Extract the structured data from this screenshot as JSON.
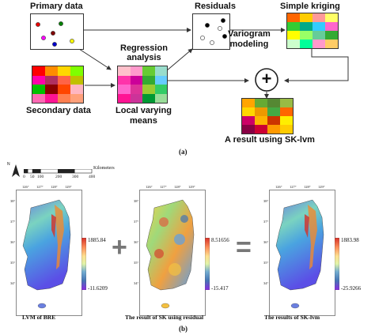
{
  "panel_a": {
    "primary_label": "Primary data",
    "secondary_label": "Secondary data",
    "regression_label_1": "Regression",
    "regression_label_2": "analysis",
    "lvm_label_1": "Local varying",
    "lvm_label_2": "means",
    "residuals_label": "Residuals",
    "sk_label": "Simple kriging",
    "variogram_label_1": "Variogram",
    "variogram_label_2": "modeling",
    "plus_symbol": "+",
    "result_label": "A result using SK-lvm",
    "caption": "(a)",
    "secondary_grid_colors": [
      "#ff0000",
      "#ff8c00",
      "#ffd700",
      "#7fff00",
      "#ff00aa",
      "#b03060",
      "#ff6347",
      "#c0c000",
      "#00c000",
      "#8b0000",
      "#ff4500",
      "#ffb6c1",
      "#ff69b4",
      "#ff1493",
      "#ff7f50",
      "#ffa07a"
    ],
    "lvm_grid_colors": [
      "#ffc0cb",
      "#ff99cc",
      "#66cc33",
      "#99ddcc",
      "#ff33aa",
      "#cc0099",
      "#33aa33",
      "#66ccff",
      "#ff66cc",
      "#dd3399",
      "#99cc33",
      "#33cc66",
      "#ff1493",
      "#cc3399",
      "#009933",
      "#99dd99"
    ],
    "sk_grid_colors": [
      "#ff6600",
      "#ffcc00",
      "#ff9999",
      "#ffff66",
      "#33cc33",
      "#00aa88",
      "#33ccff",
      "#ff66cc",
      "#ffff00",
      "#99ff66",
      "#66cc99",
      "#33aa33",
      "#ccffcc",
      "#00ff99",
      "#ff99cc",
      "#ffcc66"
    ],
    "result_grid_colors": [
      "#ffa500",
      "#66aa33",
      "#558833",
      "#99bb44",
      "#ffd700",
      "#ee9900",
      "#44aa44",
      "#ff6600",
      "#cc0066",
      "#ffb300",
      "#cc3300",
      "#ffee00",
      "#880044",
      "#cc0033",
      "#ff9900",
      "#ffcc00"
    ],
    "primary_points": [
      "#e60000",
      "#008000",
      "#ff00ff",
      "#800000",
      "#ffff00",
      "#0000cc"
    ],
    "residual_points": [
      "#000000",
      "#000000",
      "#ffffff",
      "#ffffff",
      "#000000",
      "#ffffff"
    ]
  },
  "panel_b": {
    "north_label": "N",
    "scale_ticks": [
      "0",
      "50",
      "100",
      "200",
      "300",
      "400"
    ],
    "scale_unit": "Kilometers",
    "lon_ticks": [
      "126°",
      "127°",
      "128°",
      "129°"
    ],
    "lat_ticks": [
      "38°",
      "37°",
      "36°",
      "35°",
      "34°"
    ],
    "maps": [
      {
        "label": "LVM of BRE",
        "max": "1885.84",
        "min": "-11.6209"
      },
      {
        "label": "The result of SK using residual",
        "max": "8.51656",
        "min": "-15.417"
      },
      {
        "label": "The results of SK-lvm",
        "max": "1883.98",
        "min": "-25.9266"
      }
    ],
    "plus_symbol": "+",
    "equals_symbol": "=",
    "caption": "(b)"
  }
}
